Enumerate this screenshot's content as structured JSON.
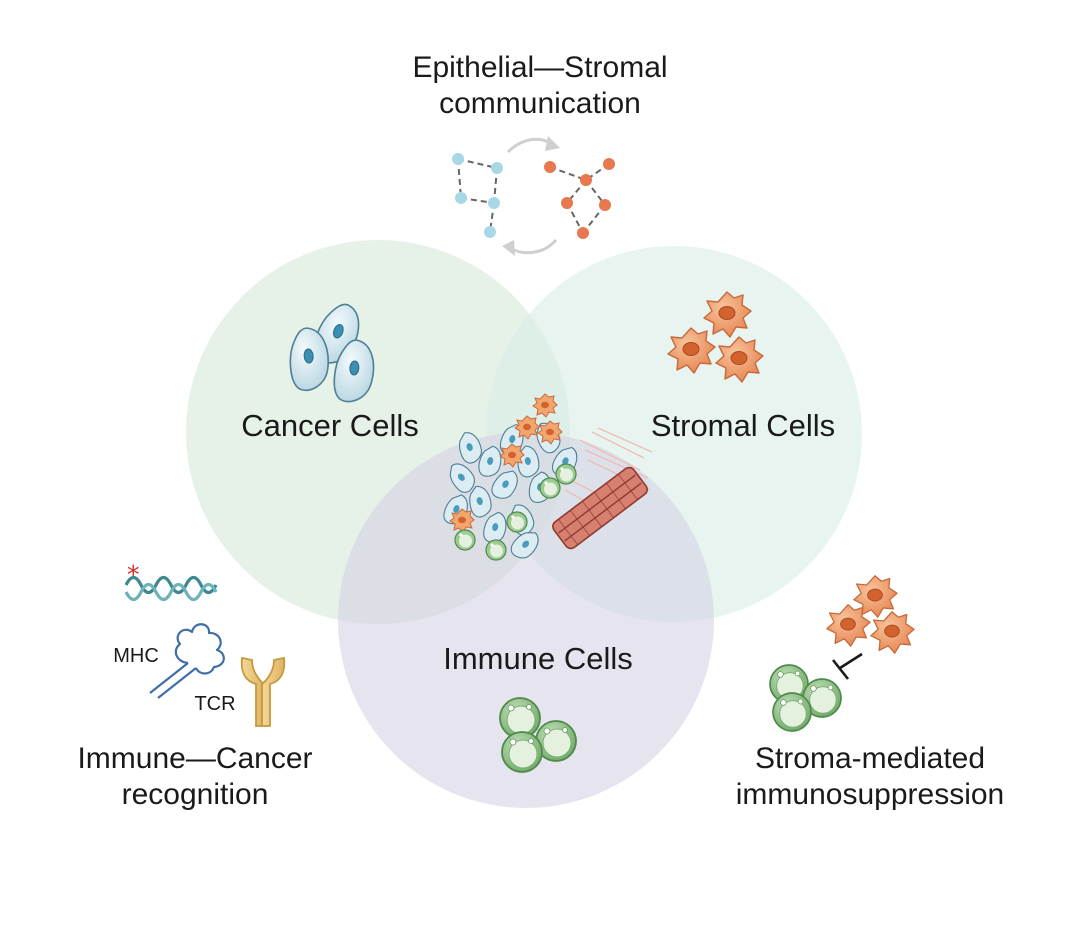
{
  "circles": {
    "cancer": {
      "label": "Cancer Cells",
      "color": "#dcecdf"
    },
    "stromal": {
      "label": "Stromal Cells",
      "color": "#dcefe9"
    },
    "immune": {
      "label": "Immune Cells",
      "color": "#dddae6"
    }
  },
  "annotations": {
    "epithelial_stromal": {
      "line1": "Epithelial—Stromal",
      "line2": "communication"
    },
    "immune_cancer": {
      "line1": "Immune—Cancer",
      "line2": "recognition"
    },
    "stroma_mediated": {
      "line1": "Stroma-mediated",
      "line2": "immunosuppression"
    },
    "mhc": "MHC",
    "tcr": "TCR"
  },
  "colors": {
    "epithelial_node": "#a8d8e6",
    "stromal_node": "#e87850",
    "cancer_cell": "#d8ebf2",
    "stromal_cell": "#f0a070",
    "immune_cell": "#8fc08a",
    "vessel": "#c85a50",
    "mutation_star": "#d42a2a"
  },
  "icons": [
    "cancer-cell-icon",
    "stromal-cell-icon",
    "immune-cell-icon",
    "dna-helix-icon",
    "mhc-molecule-icon",
    "tcr-receptor-icon",
    "inhibition-icon",
    "blood-vessel-icon"
  ]
}
